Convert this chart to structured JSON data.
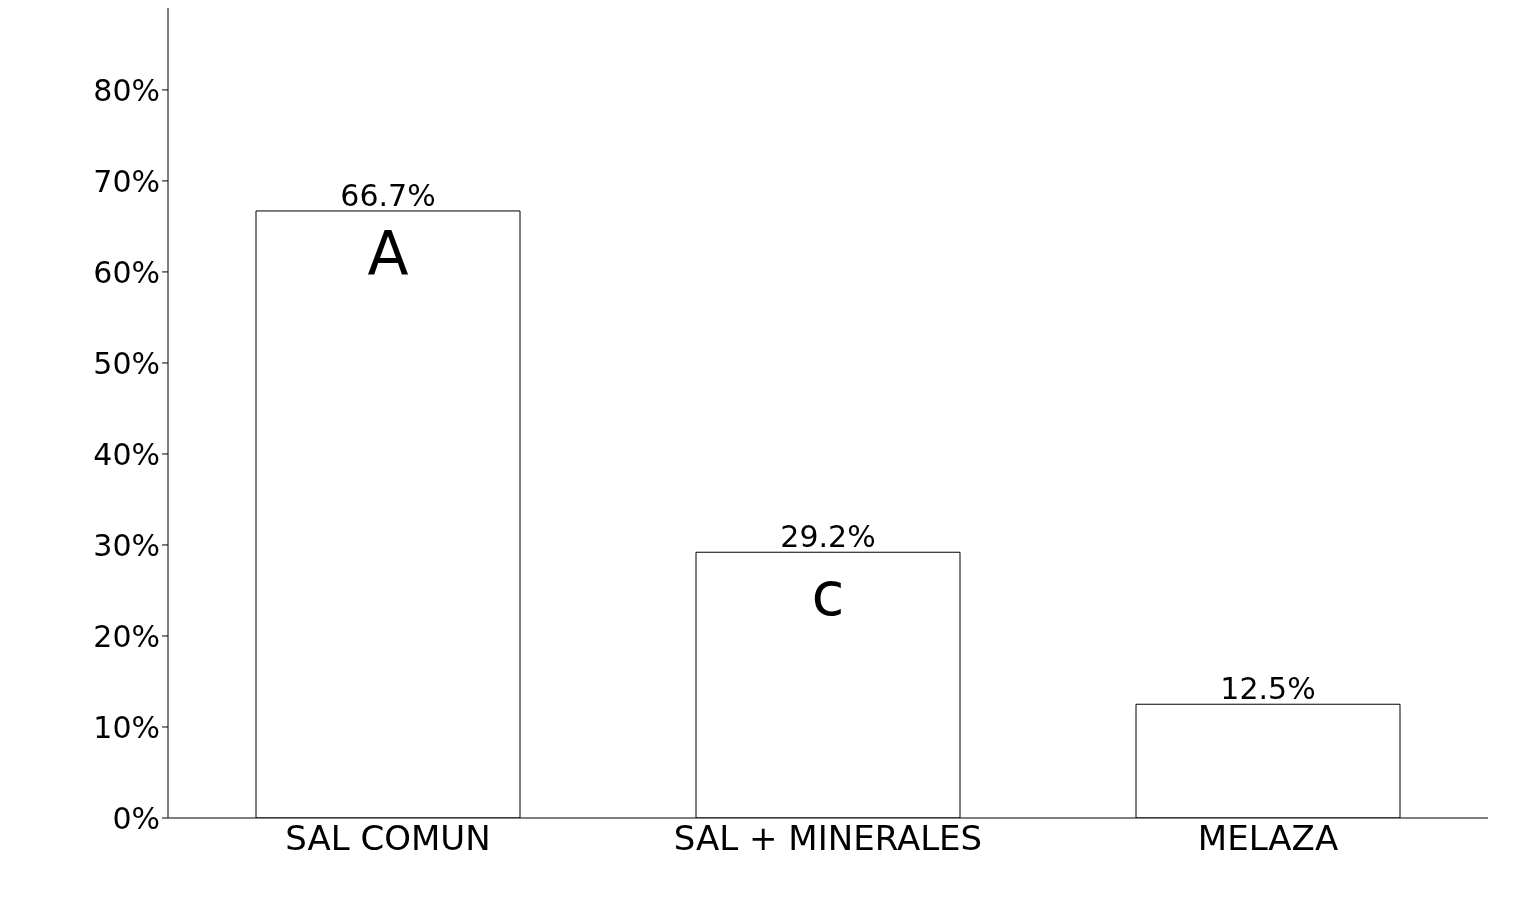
{
  "chart_data": {
    "type": "bar",
    "categories": [
      "SAL COMUN",
      "SAL + MINERALES",
      "MELAZA"
    ],
    "values": [
      66.7,
      29.2,
      12.5
    ],
    "color": "#ffffff",
    "value_labels": [
      "66.7%",
      "29.2%",
      "12.5%"
    ],
    "annotations": [
      "A",
      "c"
    ],
    "ylim": [
      0,
      89
    ],
    "yticks": [
      {
        "value": 0,
        "label": "0%"
      },
      {
        "value": 10,
        "label": "10%"
      },
      {
        "value": 20,
        "label": "20%"
      },
      {
        "value": 30,
        "label": "30%"
      },
      {
        "value": 40,
        "label": "40%"
      },
      {
        "value": 50,
        "label": "50%"
      },
      {
        "value": 60,
        "label": "60%"
      },
      {
        "value": 70,
        "label": "70%"
      },
      {
        "value": 80,
        "label": "80%"
      }
    ],
    "grid": false,
    "legend": false
  }
}
